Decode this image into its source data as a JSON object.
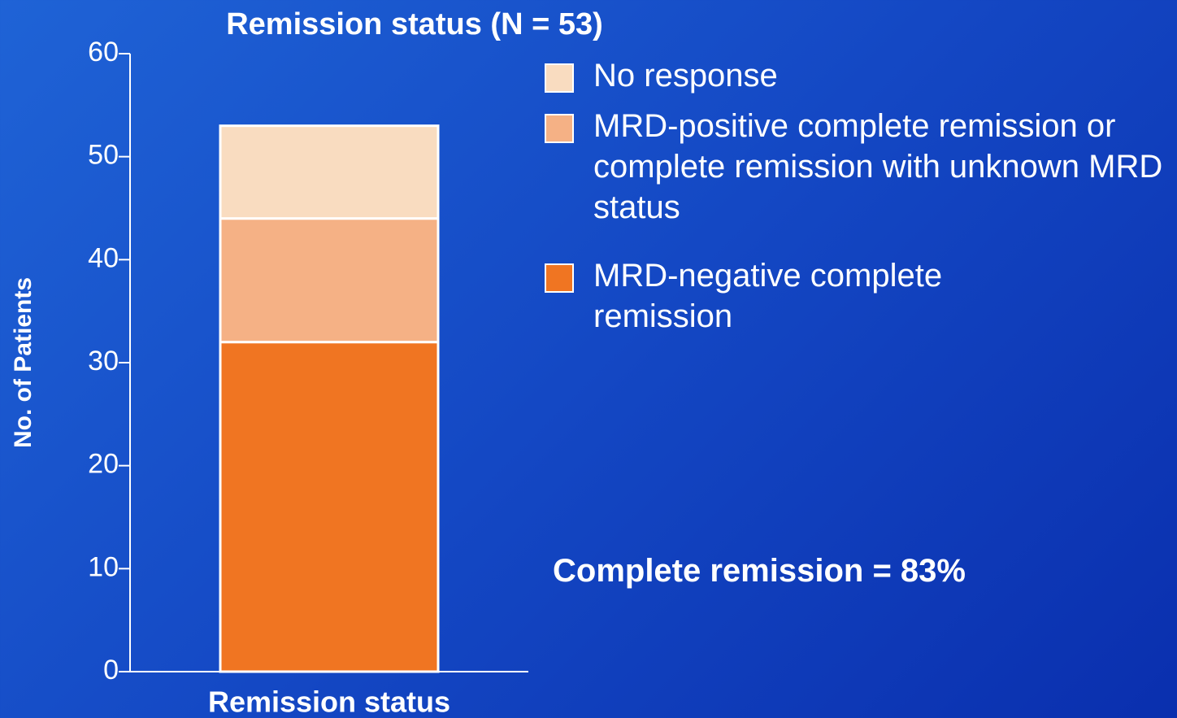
{
  "chart_data": {
    "type": "stacked_bar",
    "title": "Remission status (N = 53)",
    "y_label": "No. of Patients",
    "categories": [
      "Remission status"
    ],
    "series": [
      {
        "name": "MRD-negative complete remission",
        "color": "#f07522",
        "values": [
          32
        ]
      },
      {
        "name": "MRD-positive complete remission or complete remission with unknown MRD status",
        "color": "#f5b185",
        "values": [
          12
        ]
      },
      {
        "name": "No response",
        "color": "#f9dcc0",
        "values": [
          9
        ]
      }
    ],
    "ylim": [
      0,
      60
    ],
    "yticks": [
      0,
      10,
      20,
      30,
      40,
      50,
      60
    ],
    "annotation": "Complete remission = 83%"
  }
}
